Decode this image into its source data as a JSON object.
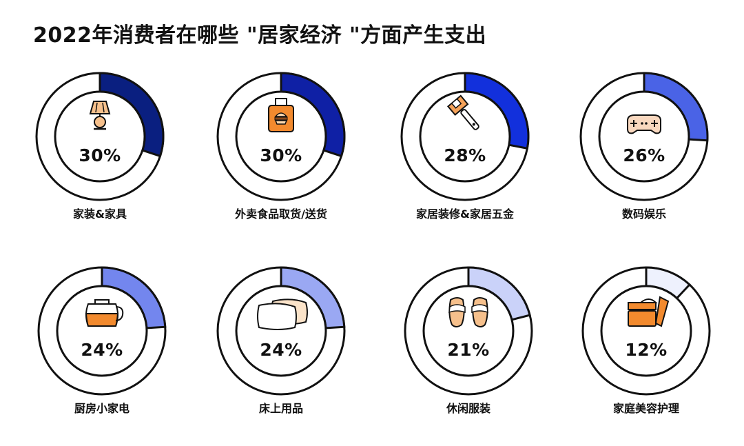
{
  "title": "2022年消费者在哪些 \"居家经济 \"方面产生支出",
  "chart_data": {
    "type": "pie",
    "title": "2022年消费者在哪些 \"居家经济 \"方面产生支出",
    "categories": [
      "家装&家具",
      "外卖食品取货/送货",
      "家居装修&家居五金",
      "数码娱乐",
      "厨房小家电",
      "床上用品",
      "休闲服装",
      "家庭美容护理"
    ],
    "values": [
      30,
      30,
      28,
      26,
      24,
      24,
      21,
      12
    ],
    "value_labels": [
      "30%",
      "30%",
      "28%",
      "26%",
      "24%",
      "24%",
      "21%",
      "12%"
    ],
    "unit": "%",
    "colors": [
      "#0a1f80",
      "#0f20a5",
      "#1230dc",
      "#4a63e6",
      "#7386ee",
      "#9aa8f3",
      "#cad2f9",
      "#eef1fd"
    ],
    "icons": [
      "lamp-icon",
      "takeout-bag-icon",
      "wrench-icon",
      "gamepad-icon",
      "coffee-pot-icon",
      "pillows-icon",
      "slippers-icon",
      "cream-jar-icon"
    ]
  }
}
